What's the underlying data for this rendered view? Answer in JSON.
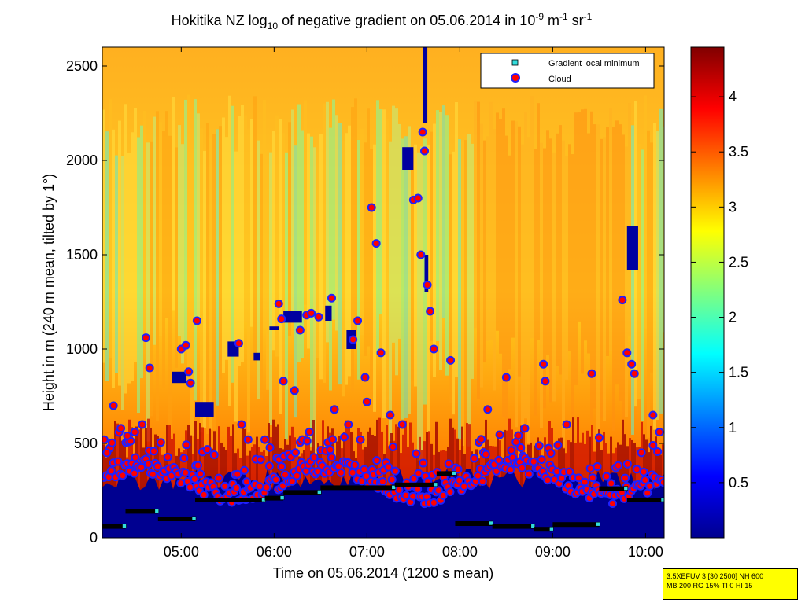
{
  "chart_data": {
    "type": "heatmap",
    "title_prefix": "Hokitika NZ log",
    "title_sub": "10",
    "title_mid": " of negative gradient on 05.06.2014 in 10",
    "title_sup1": "-9",
    "title_unit_m": " m",
    "title_sup2": "-1",
    "title_unit_sr": " sr",
    "title_sup3": "-1",
    "xlabel": "Time on 05.06.2014 (1200 s mean)",
    "ylabel": "Height in m (240 m mean, tilted by 1°)",
    "x_ticks": [
      "05:00",
      "06:00",
      "07:00",
      "08:00",
      "09:00",
      "10:00"
    ],
    "x_tick_hours": [
      5,
      6,
      7,
      8,
      9,
      10
    ],
    "xlim_hours": [
      4.15,
      10.2
    ],
    "y_ticks": [
      "0",
      "500",
      "1000",
      "1500",
      "2000",
      "2500"
    ],
    "y_tick_values": [
      0,
      500,
      1000,
      1500,
      2000,
      2500
    ],
    "ylim": [
      0,
      2600
    ],
    "colorbar": {
      "ticks": [
        "0.5",
        "1",
        "1.5",
        "2",
        "2.5",
        "3",
        "3.5",
        "4"
      ],
      "tick_values": [
        0.5,
        1,
        1.5,
        2,
        2.5,
        3,
        3.5,
        4
      ],
      "range": [
        0,
        4.45
      ],
      "colormap": "jet"
    },
    "legend": {
      "placement": "top-right",
      "entries": [
        {
          "label": "Gradient local minimum",
          "marker": "square",
          "color": "#33dddd"
        },
        {
          "label": "Cloud",
          "marker": "circle",
          "color": "#ff0000"
        }
      ]
    },
    "gradient_minimum_steps": [
      {
        "t0": 4.15,
        "t1": 4.4,
        "h": 60
      },
      {
        "t0": 4.4,
        "t1": 4.75,
        "h": 140
      },
      {
        "t0": 4.75,
        "t1": 5.15,
        "h": 100
      },
      {
        "t0": 5.15,
        "t1": 5.9,
        "h": 200
      },
      {
        "t0": 5.9,
        "t1": 6.1,
        "h": 210
      },
      {
        "t0": 6.1,
        "t1": 6.5,
        "h": 240
      },
      {
        "t0": 6.5,
        "t1": 7.3,
        "h": 265
      },
      {
        "t0": 7.3,
        "t1": 7.75,
        "h": 280
      },
      {
        "t0": 7.75,
        "t1": 7.95,
        "h": 340
      },
      {
        "t0": 7.95,
        "t1": 8.35,
        "h": 75
      },
      {
        "t0": 8.35,
        "t1": 8.8,
        "h": 60
      },
      {
        "t0": 8.8,
        "t1": 9.0,
        "h": 45
      },
      {
        "t0": 9.0,
        "t1": 9.5,
        "h": 70
      },
      {
        "t0": 9.5,
        "t1": 9.8,
        "h": 260
      },
      {
        "t0": 9.8,
        "t1": 10.2,
        "h": 200
      }
    ],
    "cloud_upper_points": [
      [
        4.17,
        520
      ],
      [
        4.2,
        450
      ],
      [
        4.27,
        700
      ],
      [
        4.35,
        580
      ],
      [
        4.42,
        540
      ],
      [
        4.5,
        560
      ],
      [
        4.58,
        600
      ],
      [
        4.62,
        1060
      ],
      [
        4.66,
        900
      ],
      [
        5.0,
        1000
      ],
      [
        5.05,
        1020
      ],
      [
        5.08,
        880
      ],
      [
        5.1,
        820
      ],
      [
        5.17,
        1150
      ],
      [
        5.62,
        1030
      ],
      [
        5.65,
        600
      ],
      [
        5.72,
        520
      ],
      [
        5.9,
        520
      ],
      [
        5.95,
        380
      ],
      [
        6.05,
        1240
      ],
      [
        6.08,
        1160
      ],
      [
        6.1,
        830
      ],
      [
        6.22,
        780
      ],
      [
        6.28,
        1100
      ],
      [
        6.35,
        1180
      ],
      [
        6.4,
        1190
      ],
      [
        6.48,
        1170
      ],
      [
        6.62,
        1270
      ],
      [
        6.65,
        680
      ],
      [
        6.8,
        600
      ],
      [
        6.85,
        1050
      ],
      [
        6.9,
        1150
      ],
      [
        6.98,
        850
      ],
      [
        7.0,
        720
      ],
      [
        7.05,
        1750
      ],
      [
        7.1,
        1560
      ],
      [
        7.15,
        980
      ],
      [
        7.25,
        650
      ],
      [
        7.38,
        600
      ],
      [
        7.5,
        1790
      ],
      [
        7.55,
        1800
      ],
      [
        7.58,
        1500
      ],
      [
        7.6,
        2150
      ],
      [
        7.62,
        2050
      ],
      [
        7.65,
        1340
      ],
      [
        7.68,
        1200
      ],
      [
        7.72,
        1000
      ],
      [
        7.9,
        940
      ],
      [
        8.3,
        680
      ],
      [
        8.5,
        850
      ],
      [
        8.7,
        580
      ],
      [
        8.9,
        920
      ],
      [
        8.92,
        830
      ],
      [
        9.15,
        600
      ],
      [
        9.42,
        870
      ],
      [
        9.5,
        530
      ],
      [
        9.75,
        1260
      ],
      [
        9.8,
        980
      ],
      [
        9.85,
        920
      ],
      [
        9.88,
        870
      ],
      [
        10.08,
        650
      ],
      [
        10.15,
        560
      ]
    ]
  }
}
